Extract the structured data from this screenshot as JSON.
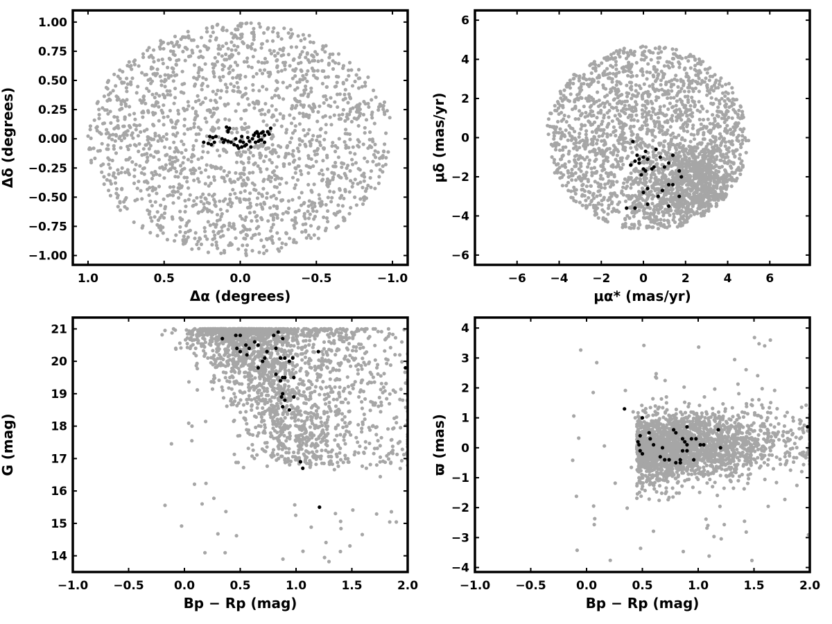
{
  "colors": {
    "field": "#a6a6a6",
    "members": "#000000",
    "frame": "#000000",
    "background": "#ffffff"
  },
  "chart_data": [
    {
      "type": "scatter",
      "panel": "top-left",
      "xlabel": "Δα (degrees)",
      "ylabel": "Δδ (degrees)",
      "xlim": [
        1.1,
        -1.1
      ],
      "ylim": [
        -1.08,
        1.1
      ],
      "xticks": [
        "1.0",
        "0.5",
        "0.0",
        "−0.5",
        "−1.0"
      ],
      "xtick_values": [
        1.0,
        0.5,
        0.0,
        -0.5,
        -1.0
      ],
      "yticks": [
        "1.00",
        "0.75",
        "0.50",
        "0.25",
        "0.00",
        "−0.25",
        "−0.50",
        "−0.75",
        "−1.00"
      ],
      "ytick_values": [
        1.0,
        0.75,
        0.5,
        0.25,
        0.0,
        -0.25,
        -0.5,
        -0.75,
        -1.0
      ],
      "series": [
        {
          "role": "field",
          "distribution": "uniform disk",
          "center": [
            0,
            0
          ],
          "radius": 1.0,
          "count": 1800
        },
        {
          "role": "members",
          "points": [
            [
              0.2,
              0.02
            ],
            [
              0.18,
              0.01
            ],
            [
              0.16,
              0.02
            ],
            [
              0.21,
              -0.04
            ],
            [
              0.17,
              -0.03
            ],
            [
              0.19,
              -0.05
            ],
            [
              0.24,
              -0.03
            ],
            [
              0.08,
              0.07
            ],
            [
              0.07,
              0.09
            ],
            [
              0.09,
              0.1
            ],
            [
              0.08,
              0.06
            ],
            [
              0.1,
              -0.01
            ],
            [
              0.08,
              -0.02
            ],
            [
              0.06,
              -0.03
            ],
            [
              0.04,
              -0.05
            ],
            [
              0.02,
              -0.06
            ],
            [
              0.01,
              -0.08
            ],
            [
              -0.01,
              -0.07
            ],
            [
              0.0,
              -0.02
            ],
            [
              -0.02,
              -0.03
            ],
            [
              -0.03,
              -0.06
            ],
            [
              -0.04,
              -0.05
            ],
            [
              -0.06,
              -0.02
            ],
            [
              -0.07,
              -0.07
            ],
            [
              -0.08,
              0.0
            ],
            [
              -0.09,
              0.03
            ],
            [
              -0.1,
              0.05
            ],
            [
              -0.11,
              0.06
            ],
            [
              -0.12,
              0.02
            ],
            [
              -0.13,
              -0.01
            ],
            [
              -0.12,
              0.04
            ],
            [
              -0.14,
              0.05
            ],
            [
              -0.15,
              0.06
            ],
            [
              -0.16,
              0.03
            ],
            [
              -0.14,
              -0.01
            ],
            [
              -0.16,
              -0.03
            ],
            [
              -0.18,
              0.06
            ],
            [
              -0.19,
              0.04
            ],
            [
              -0.2,
              0.09
            ],
            [
              -0.12,
              -0.02
            ],
            [
              -0.1,
              -0.03
            ],
            [
              -0.05,
              0.01
            ],
            [
              0.12,
              0.0
            ],
            [
              0.11,
              -0.03
            ],
            [
              0.03,
              0.0
            ],
            [
              -0.01,
              0.02
            ]
          ]
        }
      ]
    },
    {
      "type": "scatter",
      "panel": "top-right",
      "xlabel": "μα* (mas/yr)",
      "ylabel": "μδ (mas/yr)",
      "xlim": [
        -8.0,
        7.9
      ],
      "ylim": [
        -6.5,
        6.5
      ],
      "xticks": [
        "−6",
        "−4",
        "−2",
        "0",
        "2",
        "4",
        "6"
      ],
      "xtick_values": [
        -6,
        -4,
        -2,
        0,
        2,
        4,
        6
      ],
      "yticks": [
        "6",
        "4",
        "2",
        "0",
        "−2",
        "−4",
        "−6"
      ],
      "ytick_values": [
        6,
        4,
        2,
        0,
        -2,
        -4,
        -6
      ],
      "series": [
        {
          "role": "field",
          "distribution": "disk",
          "center": [
            0.2,
            0.0
          ],
          "radius": 4.8,
          "count": 1800,
          "concentration": {
            "center": [
              2.5,
              -2.5
            ],
            "sigma": [
              1.3,
              1.2
            ],
            "count": 900
          }
        },
        {
          "role": "members",
          "points": [
            [
              -0.5,
              -0.2
            ],
            [
              -0.3,
              -0.9
            ],
            [
              -0.2,
              -1.1
            ],
            [
              -0.4,
              -1.2
            ],
            [
              -0.6,
              -1.4
            ],
            [
              -0.2,
              -1.3
            ],
            [
              0.0,
              -1.0
            ],
            [
              0.2,
              -1.1
            ],
            [
              0.0,
              -1.6
            ],
            [
              0.1,
              -1.7
            ],
            [
              -0.1,
              -1.9
            ],
            [
              0.1,
              -0.7
            ],
            [
              0.6,
              -0.6
            ],
            [
              0.5,
              -1.5
            ],
            [
              0.4,
              -1.6
            ],
            [
              0.8,
              -1.0
            ],
            [
              1.0,
              -1.5
            ],
            [
              1.2,
              -1.3
            ],
            [
              1.4,
              -0.9
            ],
            [
              1.7,
              -1.7
            ],
            [
              1.8,
              -2.0
            ],
            [
              1.2,
              -2.4
            ],
            [
              1.4,
              -2.4
            ],
            [
              0.9,
              -2.7
            ],
            [
              0.2,
              -2.6
            ],
            [
              0.0,
              -2.8
            ],
            [
              0.7,
              -3.0
            ],
            [
              1.7,
              -3.0
            ],
            [
              0.2,
              -3.4
            ],
            [
              1.2,
              -3.5
            ],
            [
              -0.8,
              -3.6
            ],
            [
              -0.4,
              -3.6
            ]
          ]
        }
      ]
    },
    {
      "type": "scatter",
      "panel": "bottom-left",
      "xlabel": "Bp − Rp (mag)",
      "ylabel": "G (mag)",
      "xlim": [
        -1.0,
        2.0
      ],
      "ylim": [
        13.5,
        21.35
      ],
      "xticks": [
        "−1.0",
        "−0.5",
        "0.0",
        "0.5",
        "1.0",
        "1.5",
        "2.0"
      ],
      "xtick_values": [
        -1.0,
        -0.5,
        0.0,
        0.5,
        1.0,
        1.5,
        2.0
      ],
      "yticks": [
        "21",
        "20",
        "19",
        "18",
        "17",
        "16",
        "15",
        "14"
      ],
      "ytick_values": [
        21,
        20,
        19,
        18,
        17,
        16,
        15,
        14
      ],
      "series": [
        {
          "role": "field",
          "distribution": "color-magnitude sequence",
          "count": 2200
        },
        {
          "role": "members",
          "points": [
            [
              0.34,
              20.7
            ],
            [
              0.46,
              20.8
            ],
            [
              0.5,
              20.8
            ],
            [
              0.47,
              20.4
            ],
            [
              0.5,
              20.3
            ],
            [
              0.55,
              20.5
            ],
            [
              0.56,
              20.2
            ],
            [
              0.58,
              20.4
            ],
            [
              0.63,
              20.6
            ],
            [
              0.66,
              20.5
            ],
            [
              0.7,
              20.0
            ],
            [
              0.72,
              20.1
            ],
            [
              0.66,
              19.8
            ],
            [
              0.74,
              20.3
            ],
            [
              0.8,
              20.8
            ],
            [
              0.84,
              20.9
            ],
            [
              0.88,
              20.7
            ],
            [
              0.82,
              20.4
            ],
            [
              0.86,
              20.1
            ],
            [
              0.9,
              20.1
            ],
            [
              0.94,
              20.0
            ],
            [
              0.97,
              20.1
            ],
            [
              0.82,
              19.6
            ],
            [
              0.88,
              19.5
            ],
            [
              0.86,
              19.4
            ],
            [
              0.9,
              19.5
            ],
            [
              0.98,
              19.5
            ],
            [
              0.88,
              19.0
            ],
            [
              0.9,
              18.8
            ],
            [
              0.87,
              18.9
            ],
            [
              0.88,
              18.6
            ],
            [
              0.94,
              18.5
            ],
            [
              0.98,
              18.9
            ],
            [
              1.2,
              20.3
            ],
            [
              1.04,
              16.9
            ],
            [
              1.06,
              16.7
            ],
            [
              1.21,
              15.5
            ],
            [
              1.98,
              19.8
            ]
          ]
        }
      ]
    },
    {
      "type": "scatter",
      "panel": "bottom-right",
      "xlabel": "Bp − Rp (mag)",
      "ylabel": "ϖ (mas)",
      "xlim": [
        -1.0,
        2.0
      ],
      "ylim": [
        -4.15,
        4.35
      ],
      "xticks": [
        "−1.0",
        "−0.5",
        "0.0",
        "0.5",
        "1.0",
        "1.5",
        "2.0"
      ],
      "xtick_values": [
        -1.0,
        -0.5,
        0.0,
        0.5,
        1.0,
        1.5,
        2.0
      ],
      "yticks": [
        "4",
        "3",
        "2",
        "1",
        "0",
        "−1",
        "−2",
        "−3",
        "−4"
      ],
      "ytick_values": [
        4,
        3,
        2,
        1,
        0,
        -1,
        -2,
        -3,
        -4
      ],
      "series": [
        {
          "role": "field",
          "distribution": "color-parallax band",
          "count": 2200
        },
        {
          "role": "members",
          "points": [
            [
              0.34,
              1.3
            ],
            [
              0.5,
              1.0
            ],
            [
              0.48,
              0.4
            ],
            [
              0.56,
              0.5
            ],
            [
              0.57,
              0.3
            ],
            [
              0.46,
              0.2
            ],
            [
              0.47,
              0.1
            ],
            [
              0.6,
              0.1
            ],
            [
              0.68,
              0.0
            ],
            [
              0.48,
              -0.1
            ],
            [
              0.5,
              -0.2
            ],
            [
              0.66,
              -0.3
            ],
            [
              0.7,
              -0.4
            ],
            [
              0.74,
              -0.4
            ],
            [
              0.78,
              0.6
            ],
            [
              0.8,
              0.5
            ],
            [
              0.86,
              0.3
            ],
            [
              0.88,
              0.2
            ],
            [
              0.9,
              0.1
            ],
            [
              0.9,
              0.7
            ],
            [
              0.94,
              0.3
            ],
            [
              0.98,
              0.3
            ],
            [
              0.86,
              -0.1
            ],
            [
              0.9,
              -0.1
            ],
            [
              0.84,
              -0.4
            ],
            [
              0.84,
              -0.5
            ],
            [
              0.8,
              -0.5
            ],
            [
              0.96,
              -0.4
            ],
            [
              1.02,
              0.1
            ],
            [
              1.05,
              0.1
            ],
            [
              1.18,
              0.6
            ],
            [
              1.2,
              0.0
            ],
            [
              1.98,
              0.7
            ]
          ]
        }
      ]
    }
  ]
}
